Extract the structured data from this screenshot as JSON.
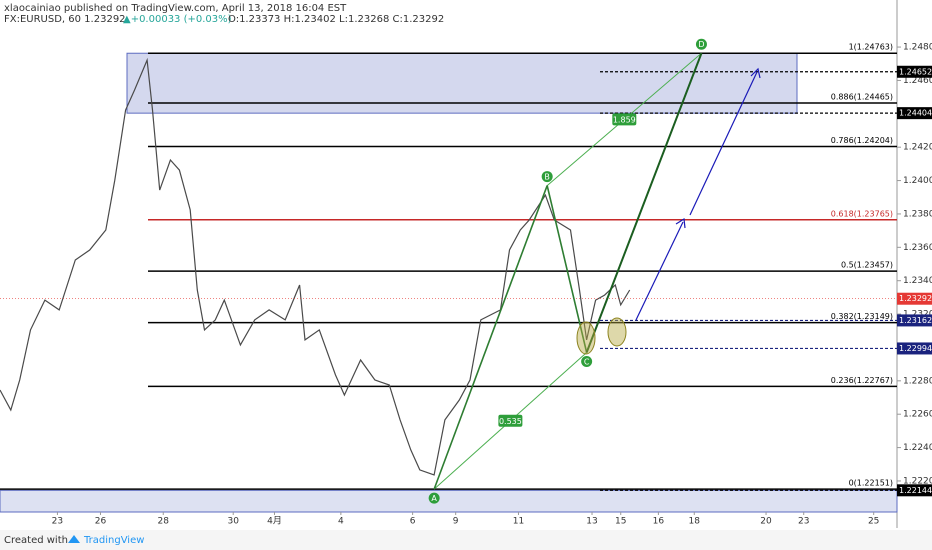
{
  "header": {
    "publisher": "xlaocainiao published on TradingView.com, April 13, 2018 16:04 EST",
    "symbol": "FX:EURUSD, 60 1.23292",
    "change": "▲+0.00033 (+0.03%)",
    "ohlc": "O:1.23373 H:1.23402 L:1.23268 C:1.23292"
  },
  "footer": {
    "created": "Created with",
    "brand": "TradingView"
  },
  "chart_data": {
    "type": "line",
    "x": [
      0,
      6,
      11,
      17,
      25,
      33,
      42,
      50,
      59,
      64,
      70,
      75,
      82,
      85,
      89,
      95,
      100,
      106,
      110,
      114,
      120,
      125,
      134,
      142,
      150,
      159,
      167,
      170,
      178,
      187,
      192,
      201,
      209,
      217,
      223,
      229,
      234,
      242,
      248,
      256,
      262,
      268,
      279,
      284,
      290,
      295,
      304,
      309,
      318,
      323,
      327,
      332,
      337,
      343,
      346,
      351
    ],
    "series": [
      {
        "color": "#4a4a4a",
        "values": [
          1.22745,
          1.22625,
          1.22805,
          1.23105,
          1.23284,
          1.23225,
          1.23524,
          1.23584,
          1.23704,
          1.24003,
          1.24423,
          1.24542,
          1.24722,
          1.24423,
          1.23943,
          1.24123,
          1.24063,
          1.23824,
          1.23344,
          1.23105,
          1.23165,
          1.23284,
          1.23015,
          1.23165,
          1.23225,
          1.23165,
          1.23374,
          1.23045,
          1.23105,
          1.22835,
          1.22715,
          1.22925,
          1.22805,
          1.22775,
          1.22566,
          1.22386,
          1.22266,
          1.22236,
          1.22566,
          1.22685,
          1.22805,
          1.23165,
          1.23225,
          1.23584,
          1.23704,
          1.23764,
          1.23913,
          1.23764,
          1.23704,
          1.23344,
          1.23045,
          1.23284,
          1.23314,
          1.23374,
          1.23255,
          1.23344
        ]
      }
    ],
    "xlim": [
      0,
      500
    ],
    "xticks": [
      {
        "value": 32,
        "label": "23"
      },
      {
        "value": 56,
        "label": "26"
      },
      {
        "value": 91,
        "label": "28"
      },
      {
        "value": 130,
        "label": "30"
      },
      {
        "value": 153,
        "label": "4月"
      },
      {
        "value": 190,
        "label": "4"
      },
      {
        "value": 230,
        "label": "6"
      },
      {
        "value": 254,
        "label": "9"
      },
      {
        "value": 289,
        "label": "11"
      },
      {
        "value": 330,
        "label": "13"
      },
      {
        "value": 346,
        "label": "15"
      },
      {
        "value": 367,
        "label": "16"
      },
      {
        "value": 387,
        "label": "18"
      },
      {
        "value": 427,
        "label": "20"
      },
      {
        "value": 448,
        "label": "23"
      },
      {
        "value": 487,
        "label": "25"
      }
    ],
    "ylim": [
      1.22014,
      1.25082
    ],
    "yticks": [
      {
        "value": 1.222,
        "label": "1.22200"
      },
      {
        "value": 1.224,
        "label": "1.22400"
      },
      {
        "value": 1.226,
        "label": "1.22600"
      },
      {
        "value": 1.228,
        "label": "1.22800"
      },
      {
        "value": 1.23,
        "label": "1.23000"
      },
      {
        "value": 1.232,
        "label": "1.23200"
      },
      {
        "value": 1.234,
        "label": "1.23400"
      },
      {
        "value": 1.236,
        "label": "1.23600"
      },
      {
        "value": 1.238,
        "label": "1.23800"
      },
      {
        "value": 1.24,
        "label": "1.24000"
      },
      {
        "value": 1.242,
        "label": "1.24200"
      },
      {
        "value": 1.244,
        "label": "1.24400"
      },
      {
        "value": 1.246,
        "label": "1.24600"
      },
      {
        "value": 1.248,
        "label": "1.24800"
      }
    ],
    "fib_levels": [
      {
        "value": 1.24763,
        "label": "1(1.24763)",
        "color": "#000000"
      },
      {
        "value": 1.24465,
        "label": "0.886(1.24465)",
        "color": "#000000"
      },
      {
        "value": 1.24204,
        "label": "0.786(1.24204)",
        "color": "#000000"
      },
      {
        "value": 1.23765,
        "label": "0.618(1.23765)",
        "color": "#c62828"
      },
      {
        "value": 1.23457,
        "label": "0.5(1.23457)",
        "color": "#000000"
      },
      {
        "value": 1.23149,
        "label": "0.382(1.23149)",
        "color": "#000000"
      },
      {
        "value": 1.22767,
        "label": "0.236(1.22767)",
        "color": "#000000"
      },
      {
        "value": 1.22151,
        "label": "0(1.22151)",
        "color": "#000000"
      }
    ],
    "price_labels": [
      {
        "value": 1.24652,
        "color": "#000000"
      },
      {
        "value": 1.24404,
        "color": "#000000"
      },
      {
        "value": 1.23292,
        "color": "#e53935"
      },
      {
        "value": 1.23162,
        "color": "#1a237e"
      },
      {
        "value": 1.22994,
        "color": "#1a237e"
      },
      {
        "value": 1.22144,
        "color": "#000000"
      }
    ],
    "points": [
      {
        "label": "A",
        "x": 242,
        "y": 1.22151
      },
      {
        "label": "B",
        "x": 305,
        "y": 1.2397
      },
      {
        "label": "C",
        "x": 327,
        "y": 1.2297
      },
      {
        "label": "D",
        "x": 391,
        "y": 1.24763
      }
    ],
    "ratios": [
      1.859,
      0.535
    ]
  }
}
